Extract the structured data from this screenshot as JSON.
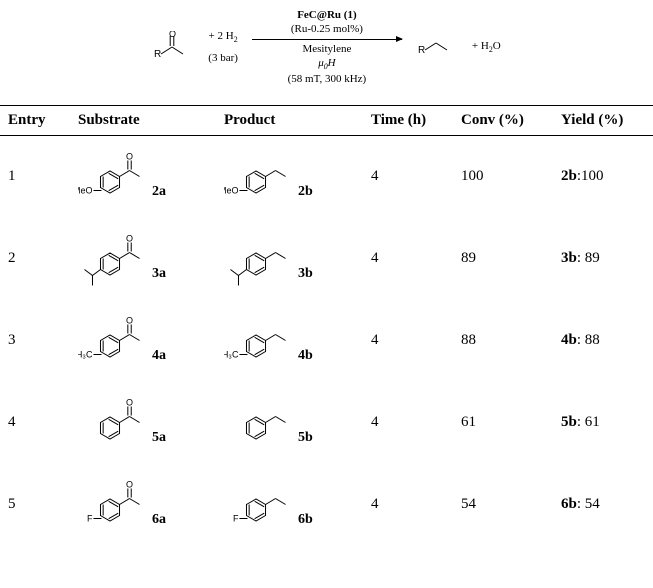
{
  "scheme": {
    "reagent_h2_label": "+ 2 H",
    "reagent_h2_sub": "2",
    "pressure": "(3 bar)",
    "catalyst_line1": "FeC@Ru (1)",
    "catalyst_line2": "(Ru-0.25 mol%)",
    "solvent": "Mesitylene",
    "field_symbol": "μ",
    "field_sub": "0",
    "field_h": "H",
    "field_conditions": "(58 mT, 300 kHz)",
    "product_extra": "+ H",
    "product_extra_sub": "2",
    "product_o": "O",
    "r_left": "R",
    "r_right": "R"
  },
  "headers": {
    "entry": "Entry",
    "substrate": "Substrate",
    "product": "Product",
    "time": "Time (h)",
    "conv": "Conv (%)",
    "yield": "Yield (%)"
  },
  "rows": [
    {
      "entry": "1",
      "sub_label": "2a",
      "sub_prefix": "MeO",
      "prod_label": "2b",
      "prod_prefix": "MeO",
      "time": "4",
      "conv": "100",
      "yield_label": "2b",
      "yield_val": ":100",
      "sub_type": "para-sub",
      "prod_type": "para-sub"
    },
    {
      "entry": "2",
      "sub_label": "3a",
      "sub_prefix": "",
      "prod_label": "3b",
      "prod_prefix": "",
      "time": "4",
      "conv": "89",
      "yield_label": "3b",
      "yield_val": ": 89",
      "sub_type": "iPr",
      "prod_type": "iPr"
    },
    {
      "entry": "3",
      "sub_label": "4a",
      "sub_prefix": "H₃C",
      "prod_label": "4b",
      "prod_prefix": "H₃C",
      "time": "4",
      "conv": "88",
      "yield_label": "4b",
      "yield_val": ": 88",
      "sub_type": "para-sub",
      "prod_type": "para-sub"
    },
    {
      "entry": "4",
      "sub_label": "5a",
      "sub_prefix": "",
      "prod_label": "5b",
      "prod_prefix": "",
      "time": "4",
      "conv": "61",
      "yield_label": "5b",
      "yield_val": ": 61",
      "sub_type": "plain",
      "prod_type": "plain"
    },
    {
      "entry": "5",
      "sub_label": "6a",
      "sub_prefix": "F",
      "prod_label": "6b",
      "prod_prefix": "F",
      "time": "4",
      "conv": "54",
      "yield_label": "6b",
      "yield_val": ": 54",
      "sub_type": "para-sub",
      "prod_type": "para-sub"
    }
  ],
  "colors": {
    "line": "#000000",
    "bg": "#ffffff"
  }
}
